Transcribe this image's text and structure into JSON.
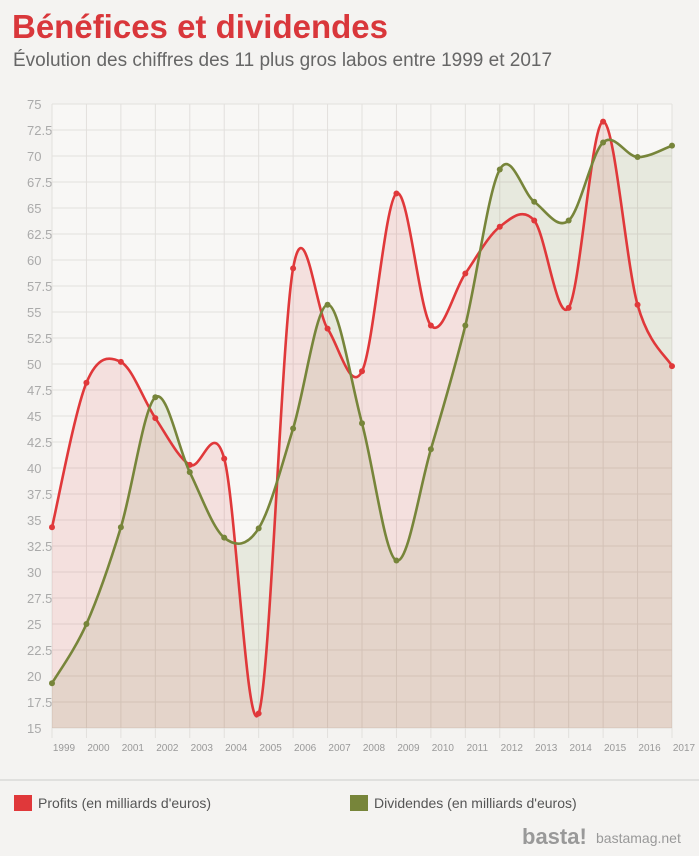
{
  "chart_data": {
    "type": "line",
    "title": "Bénéfices et dividendes",
    "subtitle": "Évolution des chiffres des 11 plus gros labos entre 1999 et 2017",
    "categories": [
      "1999",
      "2000",
      "2001",
      "2002",
      "2003",
      "2004",
      "2005",
      "2006",
      "2007",
      "2008",
      "2009",
      "2010",
      "2011",
      "2012",
      "2013",
      "2014",
      "2015",
      "2016",
      "2017"
    ],
    "series": [
      {
        "name": "Profits (en milliards d'euros)",
        "color": "#e0383a",
        "values": [
          34.3,
          48.2,
          50.2,
          44.8,
          40.3,
          40.9,
          16.4,
          59.2,
          53.4,
          49.3,
          66.4,
          53.7,
          58.7,
          63.2,
          63.8,
          55.4,
          73.3,
          55.7,
          49.8
        ]
      },
      {
        "name": "Dividendes (en milliards d'euros)",
        "color": "#77853a",
        "values": [
          19.3,
          25.0,
          34.3,
          46.8,
          39.6,
          33.3,
          34.2,
          43.8,
          55.7,
          44.3,
          31.1,
          41.8,
          53.7,
          68.7,
          65.6,
          63.8,
          71.3,
          69.9,
          71.0
        ]
      }
    ],
    "ylim": [
      15,
      75
    ],
    "yticks": [
      15,
      17.5,
      20,
      22.5,
      25,
      27.5,
      30,
      32.5,
      35,
      37.5,
      40,
      42.5,
      45,
      47.5,
      50,
      52.5,
      55,
      57.5,
      60,
      62.5,
      65,
      67.5,
      70,
      72.5,
      75
    ],
    "grid": true,
    "area": true,
    "smooth": true
  },
  "footer": {
    "logo": "basta!",
    "site": "bastamag.net"
  }
}
